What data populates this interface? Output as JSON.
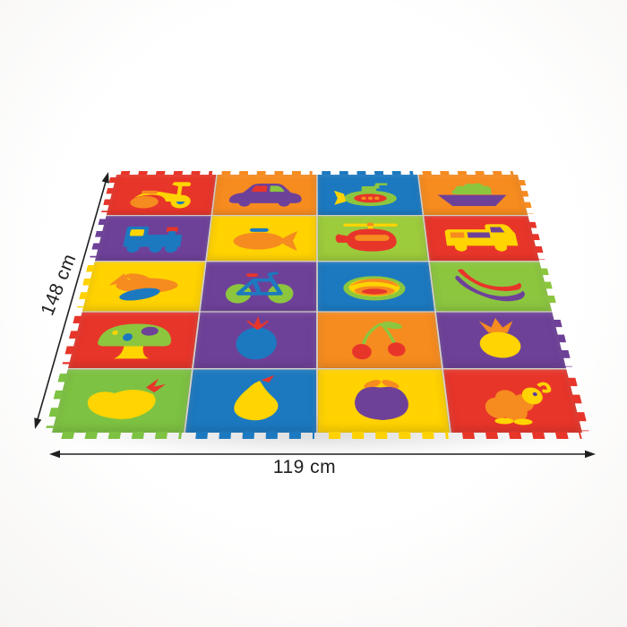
{
  "scene": {
    "background": "#ffffff"
  },
  "mat": {
    "rows": 5,
    "cols": 4,
    "seam_color": "rgba(60,35,10,0.22)",
    "tiles": [
      {
        "name": "scooter",
        "bg": "#e8352a",
        "colors": [
          "#ffd400",
          "#f68b1f",
          "#1c79c0"
        ]
      },
      {
        "name": "car",
        "bg": "#f68b1f",
        "colors": [
          "#6e4199",
          "#e8352a",
          "#8cc63f"
        ]
      },
      {
        "name": "submarine",
        "bg": "#1c79c0",
        "colors": [
          "#8cc63f",
          "#e8352a",
          "#f68b1f",
          "#ffd400"
        ]
      },
      {
        "name": "ship",
        "bg": "#f68b1f",
        "colors": [
          "#6e4199",
          "#8cc63f"
        ]
      },
      {
        "name": "train",
        "bg": "#6e4199",
        "colors": [
          "#1c79c0",
          "#ffd400",
          "#e8352a"
        ]
      },
      {
        "name": "fish",
        "bg": "#ffd200",
        "colors": [
          "#f68b1f",
          "#1c79c0"
        ]
      },
      {
        "name": "helicopter",
        "bg": "#9ccb3b",
        "colors": [
          "#e8352a",
          "#ffd400",
          "#f68b1f"
        ]
      },
      {
        "name": "truck",
        "bg": "#e8352a",
        "colors": [
          "#ffd400",
          "#6e4199",
          "#f68b1f"
        ]
      },
      {
        "name": "airplane",
        "bg": "#ffd200",
        "colors": [
          "#f68b1f",
          "#1c79c0"
        ]
      },
      {
        "name": "bicycle",
        "bg": "#6e4199",
        "colors": [
          "#8cc63f",
          "#1c79c0",
          "#e8352a"
        ]
      },
      {
        "name": "melon",
        "bg": "#1c79c0",
        "colors": [
          "#8cc63f",
          "#ffd400",
          "#f68b1f",
          "#e8352a"
        ]
      },
      {
        "name": "banana",
        "bg": "#8cc63f",
        "colors": [
          "#6e4199",
          "#e8352a"
        ]
      },
      {
        "name": "mushroom",
        "bg": "#e8352a",
        "colors": [
          "#8cc63f",
          "#ffd400",
          "#6e4199",
          "#1c79c0"
        ]
      },
      {
        "name": "tomato",
        "bg": "#6e4199",
        "colors": [
          "#1c79c0",
          "#e8352a"
        ]
      },
      {
        "name": "cherries",
        "bg": "#f68b1f",
        "colors": [
          "#e8352a",
          "#8cc63f"
        ]
      },
      {
        "name": "pineapple",
        "bg": "#6e4199",
        "colors": [
          "#ffd400",
          "#f68b1f"
        ]
      },
      {
        "name": "eggplant",
        "bg": "#7dc242",
        "colors": [
          "#ffd400",
          "#e8352a"
        ]
      },
      {
        "name": "pear",
        "bg": "#1c79c0",
        "colors": [
          "#ffd400",
          "#e8352a"
        ]
      },
      {
        "name": "apple",
        "bg": "#ffd200",
        "colors": [
          "#6e4199",
          "#f68b1f"
        ]
      },
      {
        "name": "duck",
        "bg": "#e8352a",
        "colors": [
          "#f68b1f",
          "#ffd400",
          "#5a3ba0"
        ]
      }
    ]
  },
  "dimensions": {
    "height_label": "148 cm",
    "width_label": "119 cm",
    "color": "#1f1f1f"
  }
}
